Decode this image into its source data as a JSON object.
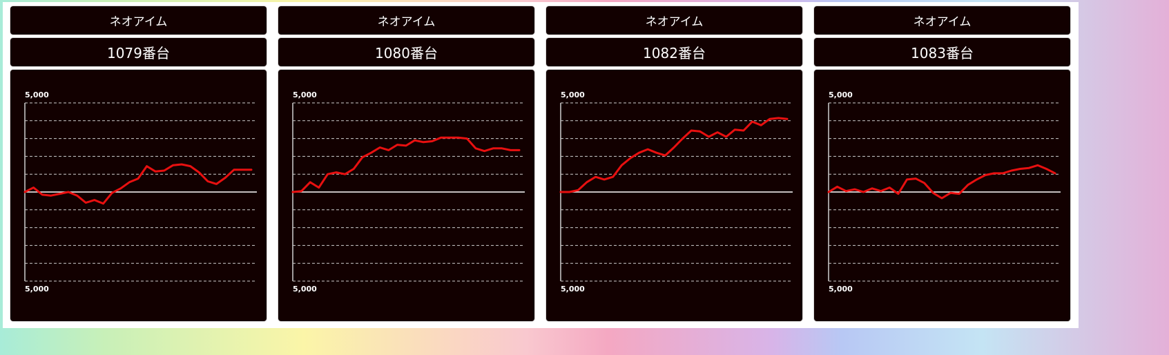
{
  "panels": [
    {
      "header": "ネオアイム",
      "machine_label": "1079番台",
      "chart_data": {
        "type": "line",
        "top_label": "5,000",
        "bottom_label": "5,000",
        "ylim": [
          -5000,
          5000
        ],
        "grid": true,
        "line_color": "#e81010",
        "x": [
          0,
          1,
          2,
          3,
          4,
          5,
          6,
          7,
          8,
          9,
          10,
          11,
          12,
          13,
          14,
          15,
          16,
          17,
          18,
          19,
          20,
          21,
          22,
          23,
          24,
          25,
          26
        ],
        "values": [
          0,
          250,
          -150,
          -200,
          -100,
          0,
          -200,
          -600,
          -450,
          -650,
          -50,
          200,
          550,
          750,
          1450,
          1150,
          1200,
          1500,
          1550,
          1450,
          1100,
          600,
          450,
          800,
          1250,
          1250,
          1250
        ]
      }
    },
    {
      "header": "ネオアイム",
      "machine_label": "1080番台",
      "chart_data": {
        "type": "line",
        "top_label": "5,000",
        "bottom_label": "5,000",
        "ylim": [
          -5000,
          5000
        ],
        "grid": true,
        "line_color": "#e81010",
        "x": [
          0,
          1,
          2,
          3,
          4,
          5,
          6,
          7,
          8,
          9,
          10,
          11,
          12,
          13,
          14,
          15,
          16,
          17,
          18,
          19,
          20,
          21,
          22,
          23,
          24,
          25,
          26
        ],
        "values": [
          0,
          50,
          550,
          250,
          1000,
          1100,
          1000,
          1300,
          1950,
          2200,
          2500,
          2350,
          2650,
          2600,
          2900,
          2800,
          2850,
          3050,
          3050,
          3050,
          3000,
          2450,
          2300,
          2450,
          2450,
          2350,
          2350
        ]
      }
    },
    {
      "header": "ネオアイム",
      "machine_label": "1082番台",
      "chart_data": {
        "type": "line",
        "top_label": "5,000",
        "bottom_label": "5,000",
        "ylim": [
          -5000,
          5000
        ],
        "grid": true,
        "line_color": "#e81010",
        "x": [
          0,
          1,
          2,
          3,
          4,
          5,
          6,
          7,
          8,
          9,
          10,
          11,
          12,
          13,
          14,
          15,
          16,
          17,
          18,
          19,
          20,
          21,
          22,
          23,
          24,
          25,
          26
        ],
        "values": [
          0,
          0,
          100,
          550,
          850,
          700,
          850,
          1500,
          1900,
          2200,
          2400,
          2200,
          2050,
          2500,
          3000,
          3450,
          3400,
          3100,
          3350,
          3100,
          3500,
          3450,
          3950,
          3750,
          4100,
          4150,
          4100
        ]
      }
    },
    {
      "header": "ネオアイム",
      "machine_label": "1083番台",
      "chart_data": {
        "type": "line",
        "top_label": "5,000",
        "bottom_label": "5,000",
        "ylim": [
          -5000,
          5000
        ],
        "grid": true,
        "line_color": "#e81010",
        "x": [
          0,
          1,
          2,
          3,
          4,
          5,
          6,
          7,
          8,
          9,
          10,
          11,
          12,
          13,
          14,
          15,
          16,
          17,
          18,
          19,
          20,
          21,
          22,
          23,
          24,
          25,
          26
        ],
        "values": [
          0,
          300,
          50,
          150,
          0,
          200,
          50,
          250,
          -100,
          700,
          750,
          500,
          -50,
          -350,
          -50,
          -100,
          400,
          700,
          950,
          1050,
          1050,
          1200,
          1300,
          1350,
          1500,
          1300,
          1050
        ]
      }
    }
  ]
}
